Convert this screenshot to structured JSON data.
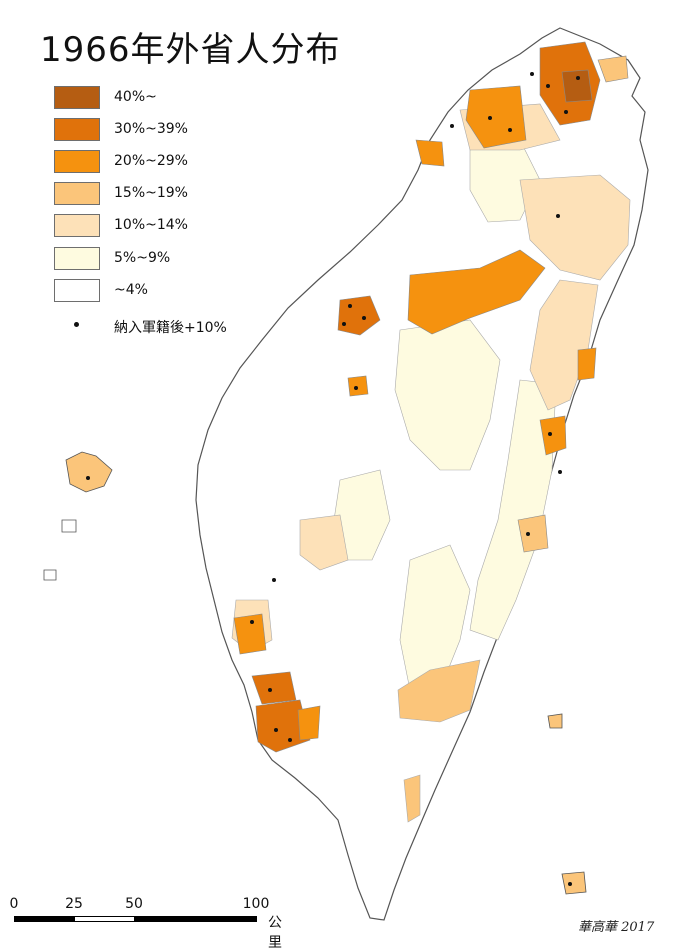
{
  "map": {
    "title": "1966年外省人分布",
    "legend": [
      {
        "label": "40%~",
        "color": "#b55d12"
      },
      {
        "label": "30%~39%",
        "color": "#e0720b"
      },
      {
        "label": "20%~29%",
        "color": "#f5920f"
      },
      {
        "label": "15%~19%",
        "color": "#fbc57a"
      },
      {
        "label": "10%~14%",
        "color": "#fde1b8"
      },
      {
        "label": "5%~9%",
        "color": "#fefbe0"
      },
      {
        "label": "~4%",
        "color": "#ffffff"
      }
    ],
    "marker_legend": {
      "label": "納入軍籍後+10%",
      "color": "#111111"
    },
    "scale_bar": {
      "ticks": [
        "0",
        "25",
        "50",
        "100"
      ],
      "unit": "公里"
    },
    "credit": "華高華 2017"
  }
}
